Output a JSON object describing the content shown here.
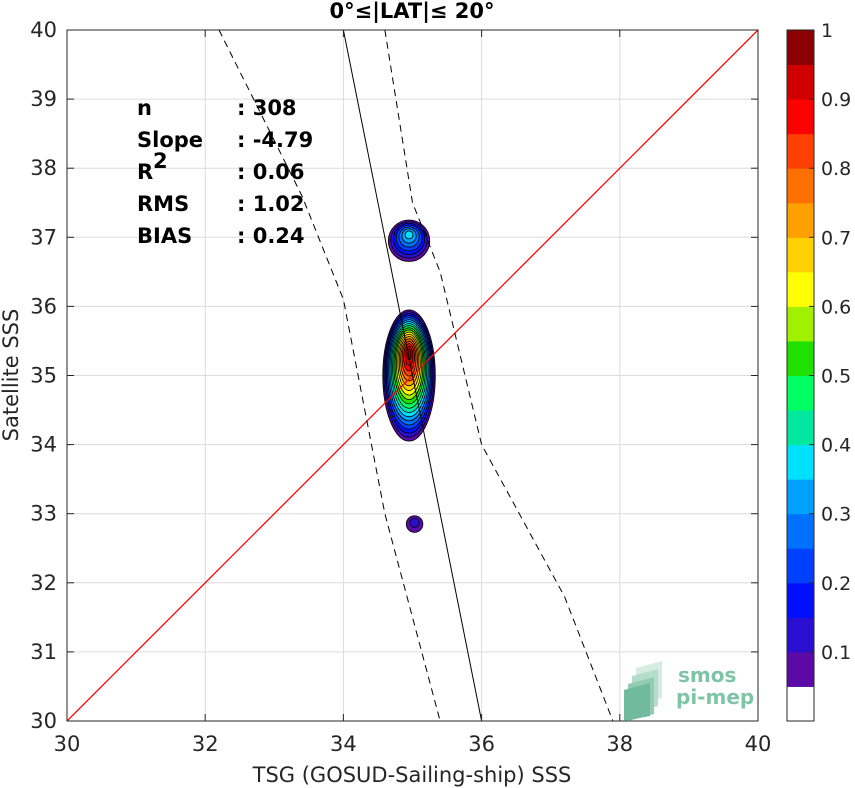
{
  "chart_data": {
    "type": "contour",
    "title": "0°≤|LAT|≤ 20°",
    "xlabel": "TSG (GOSUD-Sailing-ship) SSS",
    "ylabel": "Satellite SSS",
    "xlim": [
      30,
      40
    ],
    "ylim": [
      30,
      40
    ],
    "xticks": [
      "30",
      "32",
      "34",
      "36",
      "38",
      "40"
    ],
    "yticks": [
      "30",
      "31",
      "32",
      "33",
      "34",
      "35",
      "36",
      "37",
      "38",
      "39",
      "40"
    ],
    "grid": true,
    "stats": [
      {
        "label": "n",
        "value": ": 308"
      },
      {
        "label": "Slope",
        "value": ": -4.79"
      },
      {
        "label": "R",
        "sup": "2",
        "value": ": 0.06"
      },
      {
        "label": "RMS",
        "value": ": 1.02"
      },
      {
        "label": "BIAS",
        "value": ": 0.24"
      }
    ],
    "identity_line": {
      "points": [
        [
          30,
          30
        ],
        [
          40,
          40
        ]
      ],
      "color": "#ff0000"
    },
    "regression_line": {
      "points": [
        [
          34.0,
          40.0
        ],
        [
          36.0,
          30.0
        ]
      ],
      "color": "#000000"
    },
    "confidence_lines": [
      {
        "points": [
          [
            32.2,
            40.0
          ],
          [
            33.4,
            37.6
          ],
          [
            34.0,
            36.1
          ],
          [
            34.6,
            33.0
          ],
          [
            35.4,
            30.0
          ]
        ]
      },
      {
        "points": [
          [
            34.6,
            40.0
          ],
          [
            35.0,
            37.5
          ],
          [
            35.4,
            36.5
          ],
          [
            36.0,
            34.0
          ],
          [
            37.2,
            31.8
          ],
          [
            37.9,
            30.0
          ]
        ]
      }
    ],
    "density_blobs": [
      {
        "center": [
          34.95,
          35.0
        ],
        "rx": 0.38,
        "ry": 0.95,
        "peak": 1.0
      },
      {
        "center": [
          34.95,
          36.95
        ],
        "rx": 0.3,
        "ry": 0.3,
        "peak": 0.35
      },
      {
        "center": [
          35.03,
          32.85
        ],
        "rx": 0.12,
        "ry": 0.12,
        "peak": 0.1
      }
    ],
    "colorbar": {
      "range": [
        0,
        1
      ],
      "ticks": [
        "0.1",
        "0.2",
        "0.3",
        "0.4",
        "0.5",
        "0.6",
        "0.7",
        "0.8",
        "0.9",
        "1"
      ],
      "tick_values": [
        0.1,
        0.2,
        0.3,
        0.4,
        0.5,
        0.6,
        0.7,
        0.8,
        0.9,
        1.0
      ],
      "colors": [
        "#ffffff",
        "#5b0aa6",
        "#2a0fd0",
        "#0010ff",
        "#0040ff",
        "#0070ff",
        "#00a0ff",
        "#00e0ff",
        "#00e8a0",
        "#00ff60",
        "#20e000",
        "#a0f000",
        "#ffff00",
        "#ffd000",
        "#ffa000",
        "#ff7000",
        "#ff4000",
        "#ff0000",
        "#d00000",
        "#8b0000"
      ]
    }
  },
  "logo": {
    "line1": "smos",
    "line2": "pi-mep"
  }
}
